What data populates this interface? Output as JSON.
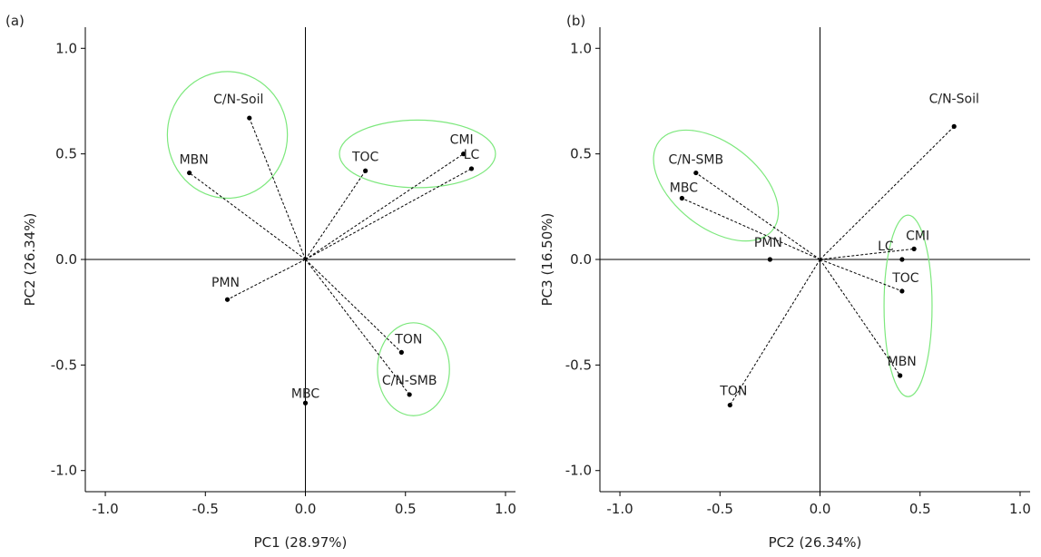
{
  "chart_data": [
    {
      "type": "scatter",
      "panel_label": "(a)",
      "xlabel": "PC1 (28.97%)",
      "ylabel": "PC2 (26.34%)",
      "xlim": [
        -1.1,
        1.05
      ],
      "ylim": [
        -1.1,
        1.1
      ],
      "xticks": [
        -1.0,
        -0.5,
        0.0,
        0.5,
        1.0
      ],
      "yticks": [
        -1.0,
        -0.5,
        0.0,
        0.5,
        1.0
      ],
      "xtick_labels": [
        "-1.0",
        "-0.5",
        "0.0",
        "0.5",
        "1.0"
      ],
      "ytick_labels": [
        "-1.0",
        "-0.5",
        "0.0",
        "0.5",
        "1.0"
      ],
      "loadings": [
        {
          "label": "C/N-Soil",
          "x": -0.28,
          "y": 0.67
        },
        {
          "label": "MBN",
          "x": -0.58,
          "y": 0.41
        },
        {
          "label": "TOC",
          "x": 0.3,
          "y": 0.42
        },
        {
          "label": "CMI",
          "x": 0.79,
          "y": 0.5
        },
        {
          "label": "LC",
          "x": 0.83,
          "y": 0.43
        },
        {
          "label": "PMN",
          "x": -0.39,
          "y": -0.19
        },
        {
          "label": "TON",
          "x": 0.48,
          "y": -0.44
        },
        {
          "label": "C/N-SMB",
          "x": 0.52,
          "y": -0.64
        },
        {
          "label": "MBC",
          "x": 0.0,
          "y": -0.68
        }
      ],
      "groups": [
        {
          "members": [
            "C/N-Soil",
            "MBN"
          ],
          "cx": -0.39,
          "cy": 0.59,
          "rx": 0.3,
          "ry": 0.3,
          "color": "#7de87d"
        },
        {
          "members": [
            "TOC",
            "CMI",
            "LC"
          ],
          "cx": 0.56,
          "cy": 0.5,
          "rx": 0.39,
          "ry": 0.16,
          "color": "#7de87d"
        },
        {
          "members": [
            "TON",
            "C/N-SMB"
          ],
          "cx": 0.54,
          "cy": -0.52,
          "rx": 0.18,
          "ry": 0.22,
          "color": "#7de87d"
        }
      ]
    },
    {
      "type": "scatter",
      "panel_label": "(b)",
      "xlabel": "PC2 (26.34%)",
      "ylabel": "PC3 (16.50%)",
      "xlim": [
        -1.1,
        1.05
      ],
      "ylim": [
        -1.1,
        1.1
      ],
      "xticks": [
        -1.0,
        -0.5,
        0.0,
        0.5,
        1.0
      ],
      "yticks": [
        -1.0,
        -0.5,
        0.0,
        0.5,
        1.0
      ],
      "xtick_labels": [
        "-1.0",
        "-0.5",
        "0.0",
        "0.5",
        "1.0"
      ],
      "ytick_labels": [
        "-1.0",
        "-0.5",
        "0.0",
        "0.5",
        "1.0"
      ],
      "loadings": [
        {
          "label": "C/N-Soil",
          "x": 0.67,
          "y": 0.63
        },
        {
          "label": "C/N-SMB",
          "x": -0.62,
          "y": 0.41
        },
        {
          "label": "MBC",
          "x": -0.69,
          "y": 0.29
        },
        {
          "label": "PMN",
          "x": -0.25,
          "y": 0.0
        },
        {
          "label": "CMI",
          "x": 0.47,
          "y": 0.05
        },
        {
          "label": "LC",
          "x": 0.41,
          "y": 0.0
        },
        {
          "label": "TOC",
          "x": 0.41,
          "y": -0.15
        },
        {
          "label": "MBN",
          "x": 0.4,
          "y": -0.55
        },
        {
          "label": "TON",
          "x": -0.45,
          "y": -0.69
        }
      ],
      "groups": [
        {
          "members": [
            "C/N-SMB",
            "MBC",
            "PMN"
          ],
          "cx": -0.52,
          "cy": 0.35,
          "rx": 0.36,
          "ry": 0.2,
          "rotate": 38,
          "color": "#7de87d"
        },
        {
          "members": [
            "CMI",
            "LC",
            "TOC",
            "MBN"
          ],
          "cx": 0.44,
          "cy": -0.22,
          "rx": 0.12,
          "ry": 0.43,
          "color": "#7de87d"
        }
      ]
    }
  ]
}
